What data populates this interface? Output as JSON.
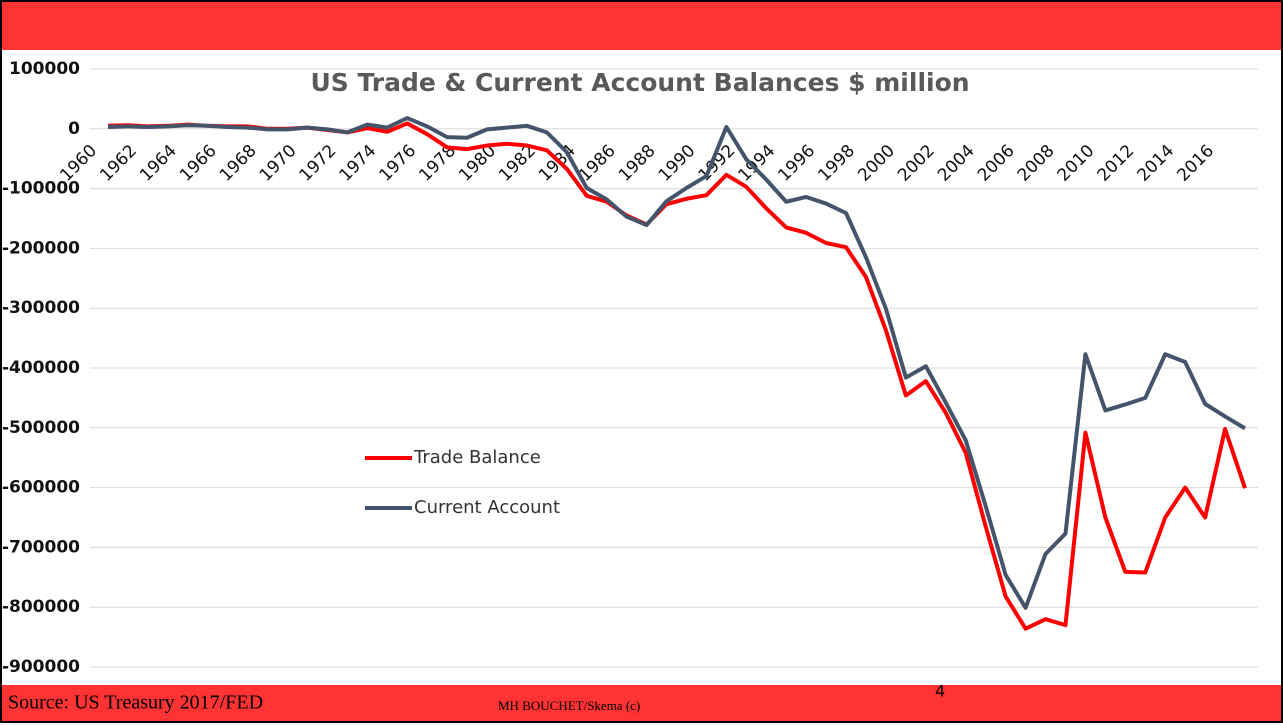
{
  "slide": {
    "source": "Source: US Treasury 2017/FED",
    "author": "MH BOUCHET/Skema (c)",
    "page_number": "4"
  },
  "chart_data": {
    "type": "line",
    "title": "US Trade & Current Account Balances $ million",
    "categories": [
      "1960",
      null,
      "1962",
      null,
      "1964",
      null,
      "1966",
      null,
      "1968",
      null,
      "1970",
      null,
      "1972",
      null,
      "1974",
      null,
      "1976",
      null,
      "1978",
      null,
      "1980",
      null,
      "1982",
      null,
      "1984",
      null,
      "1986",
      null,
      "1988",
      null,
      "1990",
      null,
      "1992",
      null,
      "1994",
      null,
      "1996",
      null,
      "1998",
      null,
      "2000",
      null,
      "2002",
      null,
      "2004",
      null,
      "2006",
      null,
      "2008",
      null,
      "2010",
      null,
      "2012",
      null,
      "2014",
      null,
      "2016",
      null
    ],
    "series": [
      {
        "name": "Trade Balance",
        "color": "#ff0000",
        "values": [
          5000,
          6000,
          4000,
          5000,
          7000,
          5000,
          4000,
          4000,
          0,
          0,
          2000,
          -2000,
          -6000,
          1000,
          -5000,
          9000,
          -9000,
          -31000,
          -34000,
          -28000,
          -25000,
          -28000,
          -36000,
          -67000,
          -112000,
          -122000,
          -145000,
          -160000,
          -126000,
          -117000,
          -111000,
          -77000,
          -97000,
          -133000,
          -165000,
          -174000,
          -191000,
          -198000,
          -248000,
          -337000,
          -446000,
          -422000,
          -475000,
          -542000,
          -665000,
          -782000,
          -836000,
          -820000,
          -830000,
          -508000,
          -650000,
          -741000,
          -742000,
          -650000,
          -600000,
          -650000,
          -502000,
          -601000
        ]
      },
      {
        "name": "Current Account",
        "color": "#44546a",
        "values": [
          3000,
          4000,
          3000,
          4000,
          6000,
          5000,
          3000,
          2000,
          -1000,
          -1000,
          2000,
          -1000,
          -6000,
          7000,
          2000,
          18000,
          4000,
          -14000,
          -15000,
          -1000,
          2000,
          5000,
          -6000,
          -39000,
          -99000,
          -118000,
          -147000,
          -161000,
          -121000,
          -99000,
          -79000,
          3000,
          -51000,
          -85000,
          -122000,
          -114000,
          -125000,
          -141000,
          -215000,
          -301000,
          -416000,
          -397000,
          -458000,
          -521000,
          -631000,
          -746000,
          -801000,
          -711000,
          -677000,
          -377000,
          -471000,
          -461000,
          -450000,
          -377000,
          -390000,
          -460000,
          -481000,
          -501000
        ]
      }
    ],
    "ylim": [
      -900000,
      100000
    ],
    "yticks": [
      -900000,
      -800000,
      -700000,
      -600000,
      -500000,
      -400000,
      -300000,
      -200000,
      -100000,
      0,
      100000
    ],
    "grid": true
  }
}
